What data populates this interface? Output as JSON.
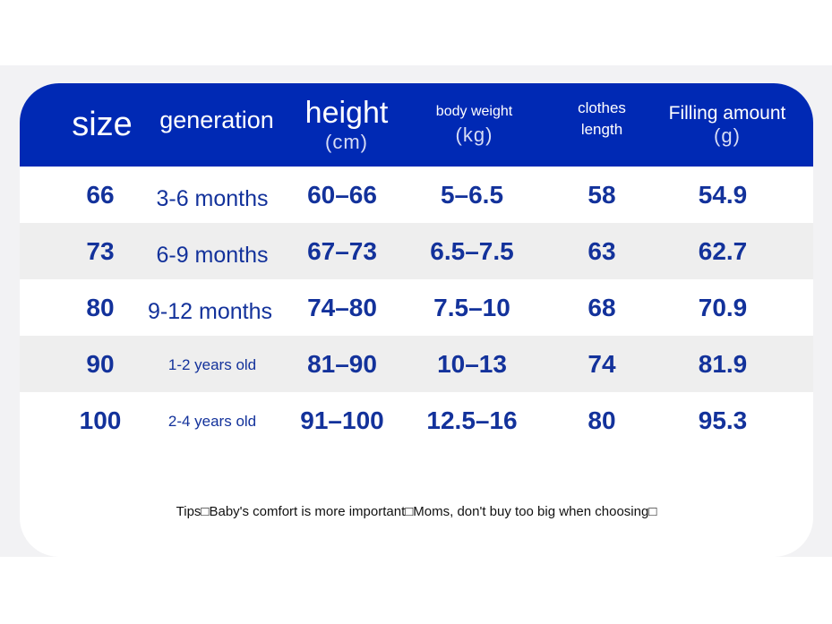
{
  "headers": {
    "size": "size",
    "generation": "generation",
    "height": "height",
    "height_unit": "(cm)",
    "body_weight": "body weight",
    "body_weight_unit": "(kg)",
    "clothes_length_line1": "clothes",
    "clothes_length_line2": "length",
    "filling": "Filling amount",
    "filling_unit": "(g)"
  },
  "rows": [
    {
      "size": "66",
      "generation": "3-6 months",
      "height": "60–66",
      "weight": "5–6.5",
      "length": "58",
      "filling": "54.9"
    },
    {
      "size": "73",
      "generation": "6-9 months",
      "height": "67–73",
      "weight": "6.5–7.5",
      "length": "63",
      "filling": "62.7"
    },
    {
      "size": "80",
      "generation": "9-12 months",
      "height": "74–80",
      "weight": "7.5–10",
      "length": "68",
      "filling": "70.9"
    },
    {
      "size": "90",
      "generation": "1-2 years old",
      "height": "81–90",
      "weight": "10–13",
      "length": "74",
      "filling": "81.9"
    },
    {
      "size": "100",
      "generation": "2-4 years old",
      "height": "91–100",
      "weight": "12.5–16",
      "length": "80",
      "filling": "95.3"
    }
  ],
  "tips": "Tips□Baby's comfort is more important□Moms, don't buy too big when choosing□",
  "colors": {
    "header_bg": "#0029b4",
    "value_text": "#13329b",
    "alt_row": "#eeeeee"
  }
}
